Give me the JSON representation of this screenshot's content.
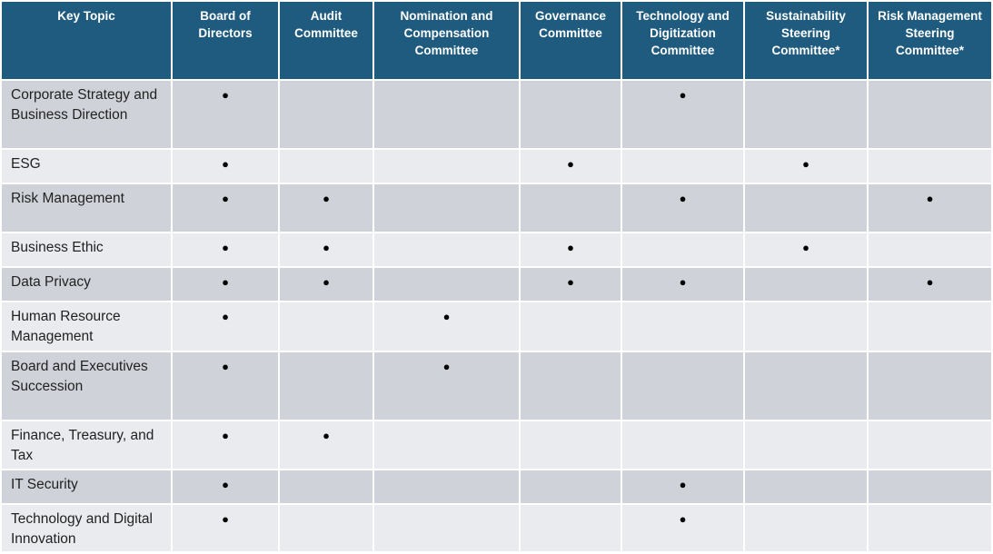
{
  "table": {
    "header": [
      "Key Topic",
      "Board of Directors",
      "Audit Committee",
      "Nomination and Compensation Committee",
      "Governance Committee",
      "Technology and Digitization Committee",
      "Sustainability Steering Committee*",
      "Risk Management Steering Committee*"
    ],
    "rows": [
      {
        "topic": "Corporate Strategy and Business Direction",
        "cells": [
          "●",
          null,
          null,
          null,
          "●",
          null,
          null
        ]
      },
      {
        "topic": "ESG",
        "cells": [
          "●",
          null,
          null,
          "●",
          null,
          "●",
          null
        ]
      },
      {
        "topic": "Risk Management",
        "cells": [
          "●",
          "●",
          null,
          null,
          "●",
          null,
          "●"
        ]
      },
      {
        "topic": "Business Ethic",
        "cells": [
          "●",
          "●",
          null,
          "●",
          null,
          "●",
          null
        ]
      },
      {
        "topic": "Data Privacy",
        "cells": [
          "●",
          "●",
          null,
          "●",
          "●",
          null,
          "●"
        ]
      },
      {
        "topic": "Human Resource Management",
        "cells": [
          "●",
          null,
          "●",
          null,
          null,
          null,
          null
        ]
      },
      {
        "topic": "Board and Executives Succession",
        "cells": [
          "●",
          null,
          "●",
          null,
          null,
          null,
          null
        ]
      },
      {
        "topic": "Finance, Treasury, and Tax",
        "cells": [
          "●",
          "●",
          null,
          null,
          null,
          null,
          null
        ]
      },
      {
        "topic": "IT Security",
        "cells": [
          "●",
          null,
          null,
          null,
          "●",
          null,
          null
        ]
      },
      {
        "topic": "Technology and Digital Innovation",
        "cells": [
          "●",
          null,
          null,
          null,
          "●",
          null,
          null
        ]
      }
    ]
  }
}
